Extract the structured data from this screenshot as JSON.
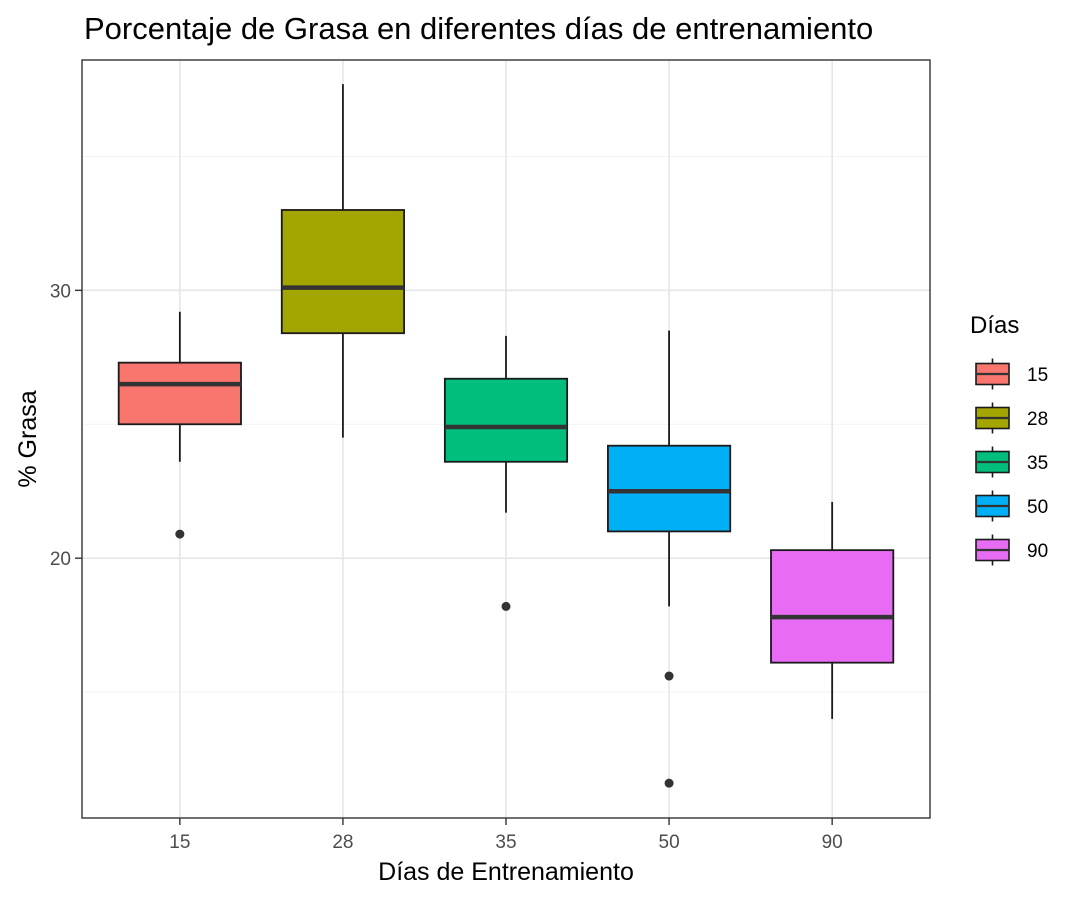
{
  "chart_data": {
    "type": "boxplot",
    "title": "Porcentaje de Grasa en diferentes días de entrenamiento",
    "xlabel": "Días de Entrenamiento",
    "ylabel": "% Grasa",
    "ylim": [
      10.3,
      38.6
    ],
    "yticks": [
      20,
      30
    ],
    "grid": true,
    "legend": {
      "title": "Días",
      "position": "right"
    },
    "categories": [
      "15",
      "28",
      "35",
      "50",
      "90"
    ],
    "boxes": [
      {
        "category": "15",
        "color": "#F8766D",
        "whisker_low": 23.6,
        "q1": 25.0,
        "median": 26.5,
        "q3": 27.3,
        "whisker_high": 29.2,
        "outliers": [
          20.9
        ]
      },
      {
        "category": "28",
        "color": "#A3A500",
        "whisker_low": 24.5,
        "q1": 28.4,
        "median": 30.1,
        "q3": 33.0,
        "whisker_high": 37.7,
        "outliers": []
      },
      {
        "category": "35",
        "color": "#00BF7D",
        "whisker_low": 21.7,
        "q1": 23.6,
        "median": 24.9,
        "q3": 26.7,
        "whisker_high": 28.3,
        "outliers": [
          18.2
        ]
      },
      {
        "category": "50",
        "color": "#00B0F6",
        "whisker_low": 18.2,
        "q1": 21.0,
        "median": 22.5,
        "q3": 24.2,
        "whisker_high": 28.5,
        "outliers": [
          15.6,
          11.6
        ]
      },
      {
        "category": "90",
        "color": "#E76BF3",
        "whisker_low": 14.0,
        "q1": 16.1,
        "median": 17.8,
        "q3": 20.3,
        "whisker_high": 22.1,
        "outliers": []
      }
    ]
  }
}
